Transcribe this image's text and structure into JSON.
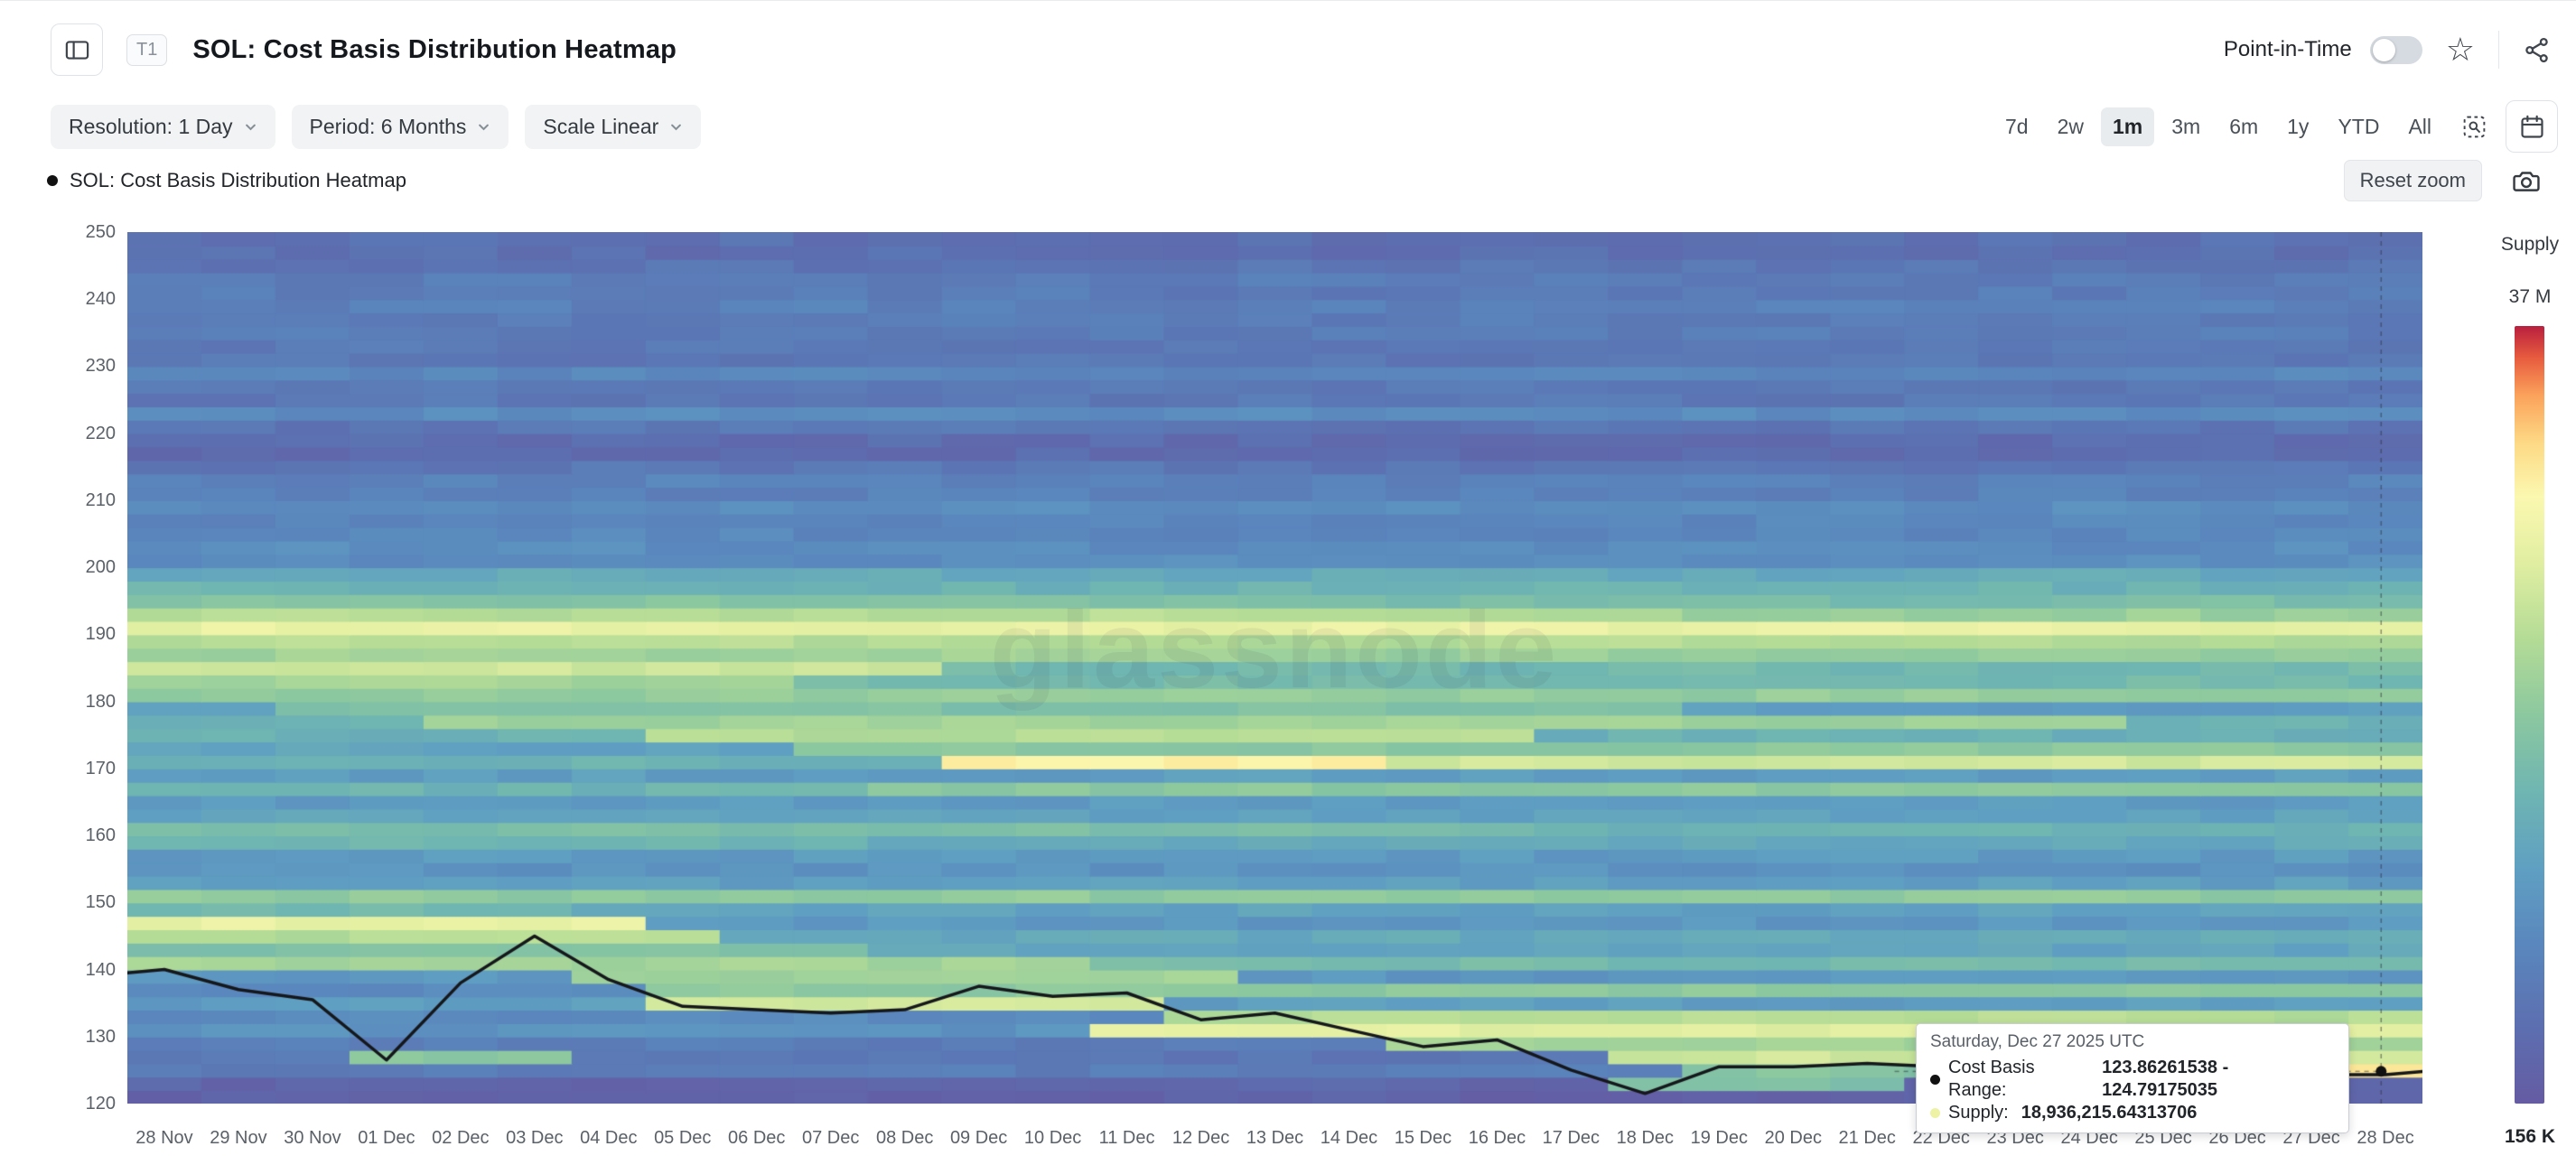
{
  "header": {
    "badge": "T1",
    "title": "SOL: Cost Basis Distribution Heatmap",
    "point_in_time_label": "Point-in-Time"
  },
  "controls": {
    "resolution": "Resolution: 1 Day",
    "period": "Period: 6 Months",
    "scale": "Scale Linear",
    "ranges": [
      "7d",
      "2w",
      "1m",
      "3m",
      "6m",
      "1y",
      "YTD",
      "All"
    ],
    "active_range": "1m",
    "reset_zoom": "Reset zoom"
  },
  "legend": {
    "series_label": "SOL: Cost Basis Distribution Heatmap"
  },
  "colorbar": {
    "title": "Supply",
    "max_label": "37 M",
    "min_label": "156 K"
  },
  "tooltip": {
    "date": "Saturday, Dec 27 2025 UTC",
    "cost_basis_label": "Cost Basis Range:",
    "cost_basis_value": "123.86261538 - 124.79175035",
    "supply_label": "Supply:",
    "supply_value": "18,936,215.64313706",
    "cost_dot_color": "#111111",
    "supply_dot_color": "#edf2a4"
  },
  "chart_data": {
    "type": "heatmap",
    "title": "SOL: Cost Basis Distribution Heatmap",
    "x_labels": [
      "28 Nov",
      "29 Nov",
      "30 Nov",
      "01 Dec",
      "02 Dec",
      "03 Dec",
      "04 Dec",
      "05 Dec",
      "06 Dec",
      "07 Dec",
      "08 Dec",
      "09 Dec",
      "10 Dec",
      "11 Dec",
      "12 Dec",
      "13 Dec",
      "14 Dec",
      "15 Dec",
      "16 Dec",
      "17 Dec",
      "18 Dec",
      "19 Dec",
      "20 Dec",
      "21 Dec",
      "22 Dec",
      "23 Dec",
      "24 Dec",
      "25 Dec",
      "26 Dec",
      "27 Dec",
      "28 Dec"
    ],
    "y_ticks": [
      250,
      240,
      230,
      220,
      210,
      200,
      190,
      180,
      170,
      160,
      150,
      140,
      130,
      120
    ],
    "y_range": [
      120,
      250
    ],
    "price_step": 2,
    "supply_range": {
      "min": "156 K",
      "max": "37 M"
    },
    "row_base_intensity": [
      0.07,
      0.09,
      0.15,
      0.17,
      0.19,
      0.22,
      0.24,
      0.27,
      0.25,
      0.3,
      0.46,
      0.34,
      0.3,
      0.32,
      0.3,
      0.46,
      0.3,
      0.25,
      0.28,
      0.34,
      0.4,
      0.3,
      0.33,
      0.36,
      0.3,
      0.34,
      0.3,
      0.34,
      0.37,
      0.32,
      0.5,
      0.42,
      0.44,
      0.5,
      0.55,
      0.68,
      0.58,
      0.44,
      0.34,
      0.3,
      0.28,
      0.25,
      0.22,
      0.25,
      0.22,
      0.2,
      0.18,
      0.15,
      0.12,
      0.14,
      0.16,
      0.18,
      0.16,
      0.18,
      0.16,
      0.15,
      0.17,
      0.13,
      0.15,
      0.14,
      0.12,
      0.13,
      0.1,
      0.08,
      0.07
    ],
    "bands": [
      [
        146,
        0,
        6,
        0.72
      ],
      [
        144,
        0,
        7,
        0.6
      ],
      [
        142,
        0,
        9,
        0.46
      ],
      [
        140,
        0,
        12,
        0.56
      ],
      [
        148,
        0,
        5,
        0.42
      ],
      [
        138,
        6,
        14,
        0.55
      ],
      [
        136,
        7,
        30,
        0.5
      ],
      [
        134,
        7,
        13,
        0.66
      ],
      [
        132,
        14,
        30,
        0.6
      ],
      [
        130,
        13,
        30,
        0.7
      ],
      [
        128,
        17,
        30,
        0.55
      ],
      [
        126,
        20,
        30,
        0.66
      ],
      [
        126,
        3,
        5,
        0.5
      ],
      [
        124,
        21,
        25,
        0.48
      ],
      [
        124,
        26,
        30,
        0.8
      ],
      [
        122,
        20,
        23,
        0.45
      ],
      [
        170,
        11,
        16,
        0.8
      ],
      [
        170,
        17,
        30,
        0.66
      ],
      [
        172,
        9,
        30,
        0.5
      ],
      [
        174,
        7,
        18,
        0.6
      ],
      [
        176,
        4,
        26,
        0.55
      ],
      [
        178,
        2,
        20,
        0.46
      ],
      [
        184,
        0,
        10,
        0.66
      ],
      [
        182,
        0,
        8,
        0.56
      ],
      [
        186,
        0,
        15,
        0.55
      ],
      [
        190,
        0,
        30,
        0.72
      ],
      [
        188,
        0,
        30,
        0.6
      ],
      [
        160,
        0,
        18,
        0.45
      ],
      [
        166,
        10,
        30,
        0.5
      ],
      [
        150,
        0,
        30,
        0.5
      ],
      [
        158,
        0,
        9,
        0.4
      ],
      [
        180,
        0,
        30,
        0.52
      ],
      [
        192,
        0,
        20,
        0.6
      ],
      [
        194,
        0,
        12,
        0.48
      ]
    ],
    "noise": {
      "seed": 1337,
      "row_jitter": 0.05,
      "cell_jitter": 0.03
    },
    "colormap_stops": [
      [
        0,
        "#655ba3"
      ],
      [
        0.1,
        "#5c6fb0"
      ],
      [
        0.2,
        "#5a86bd"
      ],
      [
        0.3,
        "#5f9fc2"
      ],
      [
        0.4,
        "#6fb5b2"
      ],
      [
        0.5,
        "#8cc89f"
      ],
      [
        0.6,
        "#b5dc96"
      ],
      [
        0.7,
        "#e2efa2"
      ],
      [
        0.78,
        "#fbf8b0"
      ],
      [
        0.85,
        "#fdd985"
      ],
      [
        0.91,
        "#fba35c"
      ],
      [
        0.96,
        "#e75a3e"
      ],
      [
        1,
        "#b91f3e"
      ]
    ],
    "price_line": {
      "color": "#15171b",
      "values": [
        140,
        137,
        135.5,
        126.5,
        138,
        145,
        138.5,
        134.5,
        134,
        133.5,
        134,
        137.5,
        136,
        136.5,
        132.5,
        133.5,
        131,
        128.5,
        129.5,
        125,
        121.5,
        125.5,
        125.5,
        126,
        125.5,
        125,
        124.5,
        124,
        124,
        124.3,
        124.3
      ],
      "edge_left": 139.5,
      "edge_right": 124.8
    },
    "crosshair": {
      "day_frac": 0.982,
      "price": 124.8,
      "h_line_from_frac": 0.77
    },
    "watermark": "glassnode"
  }
}
